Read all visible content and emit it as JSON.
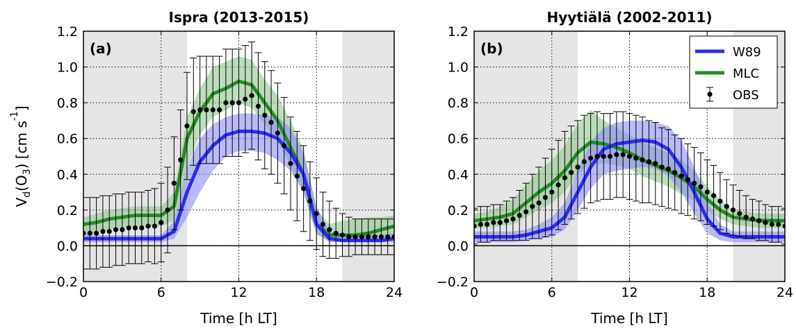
{
  "chart_data": [
    {
      "type": "line",
      "title": "Ispra (2013-2015)",
      "panel_label": "(a)",
      "xlabel": "Time [h LT]",
      "ylabel": "Vd(O3) [cm s-1]",
      "xlim": [
        0,
        24
      ],
      "ylim": [
        -0.2,
        1.2
      ],
      "xticks": [
        0,
        6,
        12,
        18,
        24
      ],
      "yticks": [
        -0.2,
        0.0,
        0.2,
        0.4,
        0.6,
        0.8,
        1.0,
        1.2
      ],
      "ytick_labels": [
        "−0.2",
        "0.0",
        "0.2",
        "0.4",
        "0.6",
        "0.8",
        "1.0",
        "1.2"
      ],
      "grid": true,
      "night_shading": [
        [
          0,
          8
        ],
        [
          20,
          24
        ]
      ],
      "x": [
        0,
        1,
        2,
        3,
        4,
        5,
        6,
        7,
        8,
        9,
        10,
        11,
        12,
        13,
        14,
        15,
        16,
        17,
        18,
        19,
        20,
        21,
        22,
        23,
        24
      ],
      "series": [
        {
          "name": "W89",
          "color": "#2b2bf5",
          "band_color": "#8c8cf5",
          "values": [
            0.04,
            0.04,
            0.04,
            0.04,
            0.04,
            0.04,
            0.04,
            0.08,
            0.3,
            0.47,
            0.56,
            0.62,
            0.64,
            0.64,
            0.63,
            0.6,
            0.52,
            0.4,
            0.12,
            0.04,
            0.03,
            0.03,
            0.03,
            0.03,
            0.04
          ],
          "lower": [
            0.02,
            0.02,
            0.02,
            0.02,
            0.02,
            0.02,
            0.02,
            0.04,
            0.16,
            0.3,
            0.42,
            0.5,
            0.53,
            0.53,
            0.52,
            0.48,
            0.42,
            0.3,
            0.07,
            0.02,
            0.02,
            0.02,
            0.02,
            0.02,
            0.02
          ],
          "upper": [
            0.06,
            0.06,
            0.06,
            0.06,
            0.06,
            0.06,
            0.06,
            0.14,
            0.44,
            0.6,
            0.68,
            0.72,
            0.74,
            0.74,
            0.73,
            0.72,
            0.66,
            0.52,
            0.22,
            0.08,
            0.06,
            0.06,
            0.06,
            0.06,
            0.07
          ]
        },
        {
          "name": "MLC",
          "color": "#238c23",
          "band_color": "#8fc48f",
          "values": [
            0.12,
            0.13,
            0.15,
            0.16,
            0.17,
            0.17,
            0.17,
            0.22,
            0.6,
            0.75,
            0.85,
            0.88,
            0.92,
            0.9,
            0.8,
            0.7,
            0.55,
            0.4,
            0.12,
            0.06,
            0.06,
            0.06,
            0.07,
            0.09,
            0.11
          ],
          "lower": [
            0.06,
            0.07,
            0.09,
            0.1,
            0.11,
            0.11,
            0.11,
            0.14,
            0.44,
            0.62,
            0.72,
            0.76,
            0.8,
            0.77,
            0.68,
            0.58,
            0.45,
            0.3,
            0.06,
            0.03,
            0.03,
            0.03,
            0.04,
            0.05,
            0.06
          ],
          "upper": [
            0.16,
            0.18,
            0.2,
            0.21,
            0.22,
            0.22,
            0.22,
            0.3,
            0.72,
            0.88,
            1.0,
            1.03,
            1.06,
            1.04,
            0.93,
            0.84,
            0.7,
            0.54,
            0.2,
            0.12,
            0.14,
            0.15,
            0.16,
            0.16,
            0.17
          ]
        }
      ],
      "obs": {
        "name": "OBS",
        "x": [
          0,
          0.5,
          1,
          1.5,
          2,
          2.5,
          3,
          3.5,
          4,
          4.5,
          5,
          5.5,
          6,
          6.5,
          7,
          7.5,
          8,
          8.5,
          9,
          9.5,
          10,
          10.5,
          11,
          11.5,
          12,
          12.5,
          13,
          13.5,
          14,
          14.5,
          15,
          15.5,
          16,
          16.5,
          17,
          17.5,
          18,
          18.5,
          19,
          19.5,
          20,
          20.5,
          21,
          21.5,
          22,
          22.5,
          23,
          23.5,
          24
        ],
        "values": [
          0.07,
          0.07,
          0.07,
          0.08,
          0.08,
          0.09,
          0.09,
          0.1,
          0.1,
          0.1,
          0.11,
          0.11,
          0.13,
          0.2,
          0.35,
          0.48,
          0.67,
          0.75,
          0.76,
          0.76,
          0.76,
          0.76,
          0.8,
          0.8,
          0.8,
          0.82,
          0.84,
          0.78,
          0.73,
          0.69,
          0.63,
          0.56,
          0.46,
          0.39,
          0.32,
          0.25,
          0.18,
          0.12,
          0.09,
          0.07,
          0.06,
          0.05,
          0.05,
          0.05,
          0.05,
          0.05,
          0.05,
          0.05,
          0.05
        ],
        "err": [
          0.2,
          0.2,
          0.2,
          0.2,
          0.2,
          0.2,
          0.2,
          0.2,
          0.2,
          0.2,
          0.2,
          0.21,
          0.22,
          0.24,
          0.26,
          0.28,
          0.3,
          0.3,
          0.3,
          0.3,
          0.3,
          0.3,
          0.3,
          0.3,
          0.3,
          0.3,
          0.3,
          0.3,
          0.3,
          0.29,
          0.28,
          0.27,
          0.26,
          0.25,
          0.24,
          0.22,
          0.2,
          0.18,
          0.16,
          0.14,
          0.12,
          0.11,
          0.1,
          0.1,
          0.1,
          0.1,
          0.1,
          0.1,
          0.1
        ]
      }
    },
    {
      "type": "line",
      "title": "Hyytiälä (2002-2011)",
      "panel_label": "(b)",
      "xlabel": "Time [h LT]",
      "ylabel": "",
      "xlim": [
        0,
        24
      ],
      "ylim": [
        -0.2,
        1.2
      ],
      "xticks": [
        0,
        6,
        12,
        18,
        24
      ],
      "yticks": [
        -0.2,
        0.0,
        0.2,
        0.4,
        0.6,
        0.8,
        1.0,
        1.2
      ],
      "ytick_labels": [
        "−0.2",
        "0.0",
        "0.2",
        "0.4",
        "0.6",
        "0.8",
        "1.0",
        "1.2"
      ],
      "grid": true,
      "night_shading": [
        [
          0,
          8
        ],
        [
          20,
          24
        ]
      ],
      "legend_position": "top-right",
      "x": [
        0,
        1,
        2,
        3,
        4,
        5,
        6,
        7,
        8,
        9,
        10,
        11,
        12,
        13,
        14,
        15,
        16,
        17,
        18,
        19,
        20,
        21,
        22,
        23,
        24
      ],
      "series": [
        {
          "name": "W89",
          "color": "#2b2bf5",
          "band_color": "#8c8cf5",
          "values": [
            0.05,
            0.05,
            0.05,
            0.05,
            0.06,
            0.08,
            0.1,
            0.16,
            0.3,
            0.44,
            0.54,
            0.57,
            0.58,
            0.59,
            0.58,
            0.54,
            0.44,
            0.3,
            0.15,
            0.07,
            0.05,
            0.05,
            0.05,
            0.05,
            0.05
          ],
          "lower": [
            0.02,
            0.02,
            0.02,
            0.02,
            0.03,
            0.04,
            0.05,
            0.09,
            0.2,
            0.32,
            0.4,
            0.42,
            0.43,
            0.44,
            0.43,
            0.39,
            0.3,
            0.18,
            0.07,
            0.03,
            0.02,
            0.02,
            0.02,
            0.02,
            0.02
          ],
          "upper": [
            0.08,
            0.08,
            0.08,
            0.08,
            0.09,
            0.12,
            0.16,
            0.24,
            0.42,
            0.58,
            0.66,
            0.69,
            0.7,
            0.7,
            0.69,
            0.67,
            0.59,
            0.44,
            0.25,
            0.12,
            0.08,
            0.08,
            0.08,
            0.08,
            0.08
          ]
        },
        {
          "name": "MLC",
          "color": "#238c23",
          "band_color": "#8fc48f",
          "values": [
            0.14,
            0.15,
            0.16,
            0.18,
            0.24,
            0.3,
            0.35,
            0.42,
            0.52,
            0.58,
            0.57,
            0.55,
            0.52,
            0.48,
            0.45,
            0.42,
            0.38,
            0.33,
            0.26,
            0.2,
            0.16,
            0.15,
            0.14,
            0.14,
            0.14
          ],
          "lower": [
            0.1,
            0.1,
            0.11,
            0.12,
            0.16,
            0.2,
            0.24,
            0.3,
            0.4,
            0.46,
            0.46,
            0.45,
            0.43,
            0.39,
            0.36,
            0.33,
            0.29,
            0.25,
            0.2,
            0.15,
            0.12,
            0.11,
            0.1,
            0.1,
            0.1
          ],
          "upper": [
            0.18,
            0.19,
            0.22,
            0.26,
            0.34,
            0.42,
            0.48,
            0.56,
            0.68,
            0.76,
            0.7,
            0.66,
            0.62,
            0.58,
            0.55,
            0.52,
            0.48,
            0.42,
            0.33,
            0.26,
            0.2,
            0.19,
            0.18,
            0.18,
            0.18
          ]
        }
      ],
      "obs": {
        "name": "OBS",
        "x": [
          0,
          0.5,
          1,
          1.5,
          2,
          2.5,
          3,
          3.5,
          4,
          4.5,
          5,
          5.5,
          6,
          6.5,
          7,
          7.5,
          8,
          8.5,
          9,
          9.5,
          10,
          10.5,
          11,
          11.5,
          12,
          12.5,
          13,
          13.5,
          14,
          14.5,
          15,
          15.5,
          16,
          16.5,
          17,
          17.5,
          18,
          18.5,
          19,
          19.5,
          20,
          20.5,
          21,
          21.5,
          22,
          22.5,
          23,
          23.5,
          24
        ],
        "values": [
          0.11,
          0.12,
          0.12,
          0.13,
          0.13,
          0.14,
          0.15,
          0.17,
          0.19,
          0.22,
          0.24,
          0.27,
          0.3,
          0.34,
          0.38,
          0.41,
          0.44,
          0.47,
          0.49,
          0.5,
          0.5,
          0.5,
          0.51,
          0.51,
          0.5,
          0.49,
          0.48,
          0.47,
          0.46,
          0.44,
          0.43,
          0.41,
          0.39,
          0.37,
          0.35,
          0.33,
          0.3,
          0.28,
          0.25,
          0.22,
          0.2,
          0.18,
          0.16,
          0.15,
          0.14,
          0.13,
          0.12,
          0.12,
          0.11
        ],
        "err": [
          0.1,
          0.1,
          0.1,
          0.1,
          0.1,
          0.11,
          0.12,
          0.14,
          0.16,
          0.18,
          0.2,
          0.22,
          0.24,
          0.25,
          0.26,
          0.26,
          0.26,
          0.26,
          0.25,
          0.25,
          0.24,
          0.24,
          0.24,
          0.24,
          0.24,
          0.24,
          0.24,
          0.23,
          0.23,
          0.22,
          0.22,
          0.21,
          0.21,
          0.2,
          0.2,
          0.19,
          0.18,
          0.17,
          0.16,
          0.15,
          0.14,
          0.13,
          0.12,
          0.11,
          0.11,
          0.1,
          0.1,
          0.1,
          0.1
        ]
      }
    }
  ]
}
